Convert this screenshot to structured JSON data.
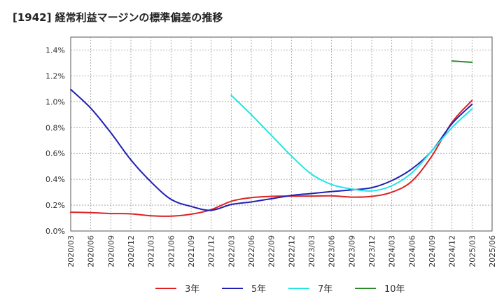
{
  "chart_data": {
    "type": "line",
    "title": "[1942]  経常利益マージンの標準偏差の推移",
    "xlabel": "",
    "ylabel": "",
    "x_ticks": [
      "2020/03",
      "2020/06",
      "2020/09",
      "2020/12",
      "2021/03",
      "2021/06",
      "2021/09",
      "2021/12",
      "2022/03",
      "2022/06",
      "2022/09",
      "2022/12",
      "2023/03",
      "2023/06",
      "2023/09",
      "2023/12",
      "2024/03",
      "2024/06",
      "2024/09",
      "2024/12",
      "2025/03",
      "2025/06"
    ],
    "y_ticks": [
      "0.0%",
      "0.2%",
      "0.4%",
      "0.6%",
      "0.8%",
      "1.0%",
      "1.2%",
      "1.4%"
    ],
    "ylim": [
      0,
      1.5
    ],
    "grid": true,
    "legend_position": "bottom",
    "series": [
      {
        "name": "3年",
        "color": "#dd2222",
        "x": [
          "2020/03",
          "2020/06",
          "2020/09",
          "2020/12",
          "2021/03",
          "2021/06",
          "2021/09",
          "2021/12",
          "2022/03",
          "2022/06",
          "2022/09",
          "2022/12",
          "2023/03",
          "2023/06",
          "2023/09",
          "2023/12",
          "2024/03",
          "2024/06",
          "2024/09",
          "2024/12",
          "2025/03"
        ],
        "values": [
          0.145,
          0.142,
          0.135,
          0.133,
          0.118,
          0.115,
          0.13,
          0.165,
          0.23,
          0.258,
          0.268,
          0.27,
          0.27,
          0.272,
          0.262,
          0.268,
          0.3,
          0.385,
          0.58,
          0.84,
          1.01
        ]
      },
      {
        "name": "5年",
        "color": "#1f1fb4",
        "x": [
          "2020/03",
          "2020/06",
          "2020/09",
          "2020/12",
          "2021/03",
          "2021/06",
          "2021/09",
          "2021/12",
          "2022/03",
          "2022/06",
          "2022/09",
          "2022/12",
          "2023/03",
          "2023/06",
          "2023/09",
          "2023/12",
          "2024/03",
          "2024/06",
          "2024/09",
          "2024/12",
          "2025/03"
        ],
        "values": [
          1.095,
          0.95,
          0.76,
          0.55,
          0.38,
          0.245,
          0.19,
          0.16,
          0.205,
          0.225,
          0.25,
          0.275,
          0.29,
          0.305,
          0.318,
          0.335,
          0.39,
          0.48,
          0.62,
          0.83,
          0.98
        ]
      },
      {
        "name": "7年",
        "color": "#22e5e5",
        "x": [
          "2022/03",
          "2022/06",
          "2022/09",
          "2022/12",
          "2023/03",
          "2023/06",
          "2023/09",
          "2023/12",
          "2024/03",
          "2024/06",
          "2024/09",
          "2024/12",
          "2025/03"
        ],
        "values": [
          1.05,
          0.9,
          0.74,
          0.58,
          0.44,
          0.36,
          0.325,
          0.31,
          0.35,
          0.45,
          0.62,
          0.8,
          0.945
        ]
      },
      {
        "name": "10年",
        "color": "#2a8a2a",
        "x": [
          "2024/12",
          "2025/03"
        ],
        "values": [
          1.315,
          1.305
        ]
      }
    ]
  }
}
